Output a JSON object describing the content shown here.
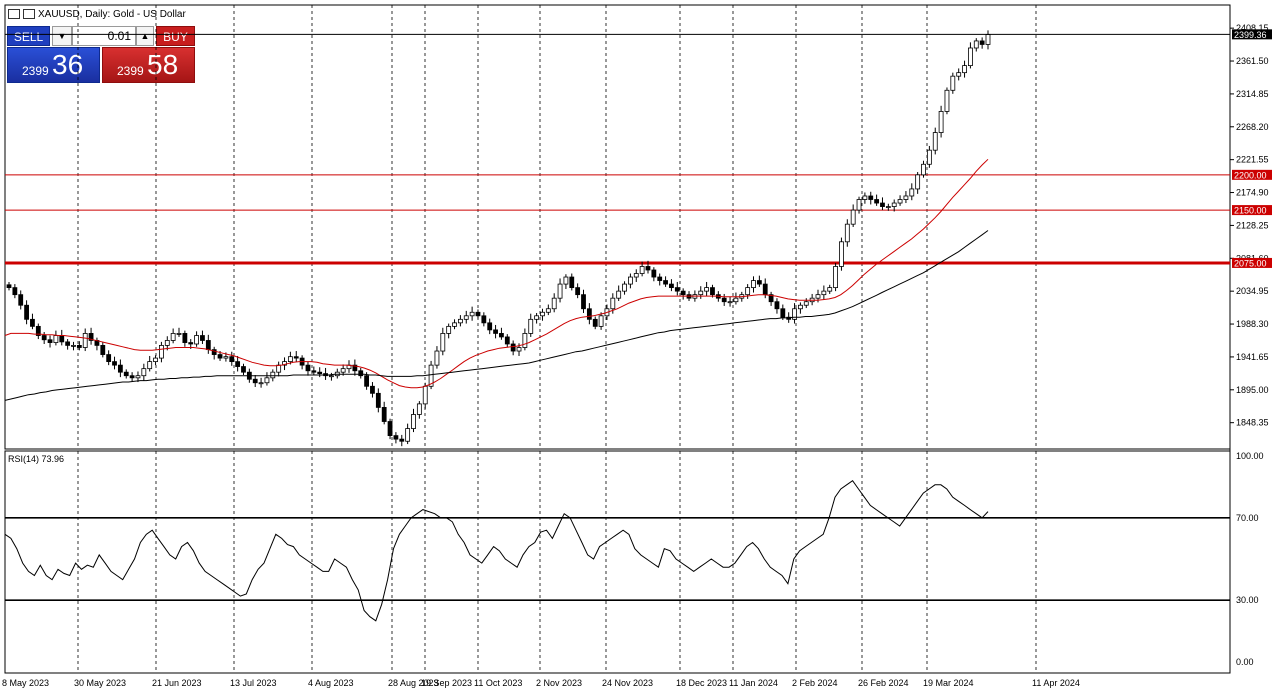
{
  "header": {
    "title": "XAUUSD, Daily:  Gold - US Dollar"
  },
  "trade_panel": {
    "sell_label": "SELL",
    "buy_label": "BUY",
    "lot_value": "0.01",
    "sell_price_small": "2399",
    "sell_price_big": "36",
    "buy_price_small": "2399",
    "buy_price_big": "58"
  },
  "chart_data": [
    {
      "type": "candlestick",
      "title": "XAUUSD, Daily:  Gold - US Dollar",
      "xlabel": "",
      "ylabel": "",
      "ylim": [
        1811,
        2441
      ],
      "grid": true,
      "y_ticks": [
        "2408.15",
        "2361.50",
        "2314.85",
        "2268.20",
        "2221.55",
        "2174.90",
        "2128.25",
        "2081.60",
        "2034.95",
        "1988.30",
        "1941.65",
        "1895.00",
        "1848.35"
      ],
      "x_tick_labels": [
        "8 May 2023",
        "30 May 2023",
        "21 Jun 2023",
        "13 Jul 2023",
        "4 Aug 2023",
        "28 Aug 2023",
        "19 Sep 2023",
        "11 Oct 2023",
        "2 Nov 2023",
        "24 Nov 2023",
        "18 Dec 2023",
        "11 Jan 2024",
        "2 Feb 2024",
        "26 Feb 2024",
        "19 Mar 2024",
        "11 Apr 2024"
      ],
      "horizontal_lines": [
        {
          "value": 2399.36,
          "label": "2399.36",
          "color": "#000000"
        },
        {
          "value": 2200.0,
          "label": "2200.00",
          "color": "#cc0000"
        },
        {
          "value": 2150.0,
          "label": "2150.00",
          "color": "#cc0000"
        },
        {
          "value": 2075.0,
          "label": "2075.00",
          "color": "#cc0000"
        }
      ],
      "close_series": [
        2040,
        2030,
        2015,
        1995,
        1985,
        1972,
        1966,
        1962,
        1972,
        1963,
        1958,
        1958,
        1955,
        1975,
        1965,
        1958,
        1945,
        1935,
        1930,
        1920,
        1915,
        1912,
        1915,
        1925,
        1935,
        1940,
        1958,
        1965,
        1975,
        1975,
        1962,
        1960,
        1972,
        1965,
        1952,
        1945,
        1940,
        1942,
        1935,
        1928,
        1920,
        1910,
        1905,
        1905,
        1912,
        1920,
        1930,
        1935,
        1942,
        1940,
        1930,
        1922,
        1920,
        1918,
        1915,
        1915,
        1920,
        1925,
        1930,
        1922,
        1915,
        1900,
        1890,
        1870,
        1850,
        1830,
        1825,
        1822,
        1840,
        1860,
        1875,
        1900,
        1930,
        1950,
        1975,
        1985,
        1990,
        1995,
        2000,
        2005,
        2000,
        1990,
        1980,
        1975,
        1970,
        1960,
        1950,
        1955,
        1975,
        1995,
        2000,
        2005,
        2010,
        2025,
        2045,
        2055,
        2040,
        2030,
        2010,
        1995,
        1985,
        2000,
        2010,
        2025,
        2035,
        2045,
        2055,
        2060,
        2070,
        2065,
        2055,
        2050,
        2045,
        2040,
        2035,
        2030,
        2025,
        2030,
        2035,
        2040,
        2030,
        2025,
        2020,
        2020,
        2025,
        2030,
        2040,
        2050,
        2045,
        2030,
        2020,
        2010,
        1998,
        1995,
        2010,
        2015,
        2020,
        2025,
        2030,
        2035,
        2040,
        2070,
        2105,
        2130,
        2150,
        2165,
        2170,
        2165,
        2160,
        2155,
        2155,
        2160,
        2165,
        2170,
        2180,
        2200,
        2215,
        2235,
        2260,
        2290,
        2320,
        2340,
        2345,
        2355,
        2380,
        2390,
        2385,
        2399
      ],
      "series": [
        {
          "name": "MA",
          "color": "#cc0000",
          "values": [
            1972,
            1975,
            1975,
            1975,
            1975,
            1974,
            1974,
            1973,
            1973,
            1972,
            1972,
            1971,
            1970,
            1969,
            1968,
            1966,
            1964,
            1962,
            1960,
            1958,
            1956,
            1954,
            1952,
            1951,
            1951,
            1951,
            1952,
            1953,
            1954,
            1955,
            1955,
            1955,
            1955,
            1954,
            1953,
            1951,
            1949,
            1947,
            1945,
            1943,
            1940,
            1937,
            1934,
            1932,
            1930,
            1929,
            1929,
            1930,
            1932,
            1934,
            1935,
            1935,
            1935,
            1934,
            1932,
            1931,
            1930,
            1930,
            1930,
            1929,
            1928,
            1926,
            1923,
            1919,
            1914,
            1909,
            1905,
            1901,
            1899,
            1898,
            1898,
            1899,
            1902,
            1906,
            1911,
            1917,
            1923,
            1929,
            1935,
            1940,
            1944,
            1947,
            1950,
            1952,
            1954,
            1955,
            1956,
            1957,
            1959,
            1962,
            1966,
            1970,
            1974,
            1979,
            1984,
            1989,
            1993,
            1996,
            1998,
            1999,
            2000,
            2002,
            2004,
            2007,
            2010,
            2014,
            2018,
            2021,
            2024,
            2026,
            2027,
            2028,
            2028,
            2028,
            2028,
            2028,
            2028,
            2028,
            2028,
            2028,
            2028,
            2028,
            2027,
            2027,
            2027,
            2027,
            2028,
            2029,
            2030,
            2030,
            2029,
            2028,
            2026,
            2024,
            2023,
            2022,
            2022,
            2022,
            2022,
            2023,
            2024,
            2026,
            2030,
            2036,
            2043,
            2051,
            2059,
            2066,
            2073,
            2079,
            2085,
            2091,
            2097,
            2103,
            2109,
            2116,
            2123,
            2131,
            2139,
            2148,
            2158,
            2168,
            2177,
            2186,
            2195,
            2205,
            2214,
            2222
          ]
        },
        {
          "name": "MA",
          "color": "#000000",
          "values": [
            1880,
            1882,
            1884,
            1886,
            1888,
            1889,
            1891,
            1892,
            1894,
            1895,
            1896,
            1897,
            1898,
            1899,
            1900,
            1901,
            1902,
            1903,
            1904,
            1905,
            1906,
            1906,
            1907,
            1908,
            1908,
            1909,
            1910,
            1910,
            1911,
            1911,
            1912,
            1912,
            1913,
            1913,
            1914,
            1914,
            1915,
            1915,
            1915,
            1915,
            1915,
            1915,
            1915,
            1915,
            1915,
            1915,
            1915,
            1915,
            1915,
            1916,
            1916,
            1916,
            1916,
            1916,
            1916,
            1916,
            1917,
            1917,
            1917,
            1917,
            1917,
            1917,
            1916,
            1916,
            1915,
            1914,
            1914,
            1914,
            1914,
            1914,
            1915,
            1915,
            1916,
            1917,
            1918,
            1919,
            1920,
            1921,
            1922,
            1923,
            1924,
            1925,
            1926,
            1927,
            1928,
            1929,
            1930,
            1931,
            1932,
            1933,
            1935,
            1937,
            1939,
            1941,
            1943,
            1945,
            1947,
            1949,
            1950,
            1952,
            1954,
            1956,
            1958,
            1960,
            1962,
            1964,
            1966,
            1968,
            1970,
            1972,
            1974,
            1976,
            1977,
            1979,
            1980,
            1981,
            1982,
            1983,
            1984,
            1985,
            1986,
            1987,
            1988,
            1989,
            1990,
            1991,
            1992,
            1993,
            1994,
            1995,
            1996,
            1996,
            1997,
            1997,
            1998,
            1998,
            1999,
            1999,
            2000,
            2001,
            2002,
            2004,
            2007,
            2010,
            2013,
            2017,
            2021,
            2025,
            2029,
            2033,
            2037,
            2041,
            2045,
            2049,
            2053,
            2057,
            2061,
            2066,
            2071,
            2076,
            2081,
            2086,
            2091,
            2097,
            2103,
            2109,
            2115,
            2121
          ]
        }
      ]
    },
    {
      "type": "line",
      "title": "RSI(14) 73.96",
      "ylim": [
        0,
        100
      ],
      "y_ticks": [
        "100.00",
        "70.00",
        "30.00",
        "0.00"
      ],
      "levels": [
        70,
        30
      ],
      "series": [
        {
          "name": "RSI(14)",
          "color": "#000000",
          "values": [
            62,
            60,
            55,
            48,
            44,
            42,
            47,
            42,
            40,
            45,
            43,
            42,
            48,
            45,
            47,
            46,
            52,
            48,
            44,
            42,
            40,
            45,
            50,
            58,
            62,
            64,
            60,
            56,
            52,
            50,
            56,
            58,
            54,
            48,
            44,
            42,
            40,
            38,
            36,
            34,
            32,
            33,
            40,
            45,
            48,
            55,
            62,
            60,
            57,
            56,
            52,
            50,
            48,
            46,
            44,
            44,
            50,
            48,
            46,
            40,
            35,
            25,
            22,
            20,
            28,
            40,
            55,
            62,
            66,
            70,
            72,
            74,
            73,
            72,
            70,
            70,
            68,
            62,
            58,
            52,
            50,
            48,
            52,
            56,
            54,
            50,
            48,
            46,
            52,
            56,
            58,
            63,
            64,
            60,
            66,
            72,
            70,
            64,
            58,
            52,
            50,
            56,
            58,
            60,
            62,
            64,
            62,
            55,
            52,
            50,
            48,
            46,
            55,
            54,
            50,
            48,
            46,
            44,
            46,
            48,
            50,
            48,
            46,
            46,
            48,
            52,
            56,
            58,
            55,
            50,
            46,
            44,
            42,
            38,
            50,
            54,
            56,
            58,
            60,
            62,
            70,
            80,
            84,
            86,
            88,
            84,
            80,
            76,
            74,
            72,
            70,
            68,
            66,
            70,
            74,
            78,
            82,
            84,
            86,
            86,
            84,
            80,
            78,
            76,
            74,
            72,
            70,
            73
          ]
        }
      ]
    }
  ]
}
